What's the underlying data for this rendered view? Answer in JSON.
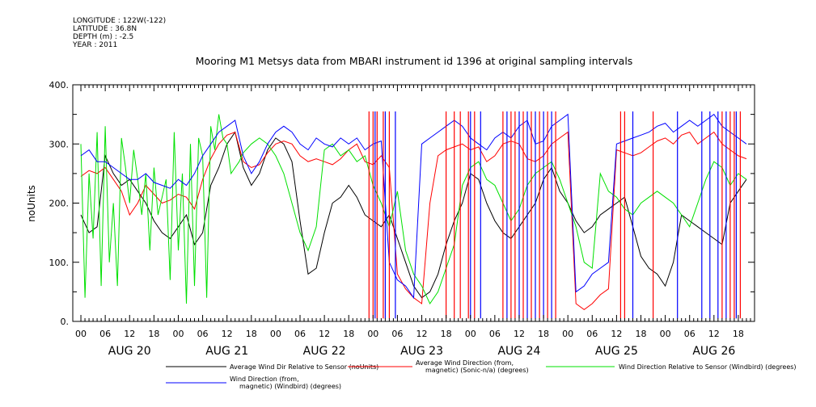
{
  "meta": {
    "longitude": "LONGITUDE : 122W(-122)",
    "latitude": "LATITUDE : 36.8N",
    "depth": "DEPTH (m) : -2.5",
    "year": "YEAR : 2011"
  },
  "chart_data": {
    "type": "line",
    "title": "Mooring M1 Metsys data from MBARI instrument id 1396 at original sampling intervals",
    "ylabel": "noUnits",
    "ylim": [
      0,
      400
    ],
    "yticks": [
      "0.",
      "100.",
      "200.",
      "300.",
      "400."
    ],
    "xlim_hours": [
      -2,
      166
    ],
    "hour_ticks": [
      "00",
      "06",
      "12",
      "18",
      "00",
      "06",
      "12",
      "18",
      "00",
      "06",
      "12",
      "18",
      "00",
      "06",
      "12",
      "18",
      "00",
      "06",
      "12",
      "18",
      "00",
      "06",
      "12",
      "18",
      "00",
      "06",
      "12",
      "18"
    ],
    "day_labels": [
      "AUG 20",
      "AUG 21",
      "AUG 22",
      "AUG 23",
      "AUG 24",
      "AUG 25",
      "AUG 26"
    ],
    "series": [
      {
        "name": "Average Wind Dir Relative to Sensor (noUnits)",
        "color": "#000000",
        "t": [
          0,
          2,
          4,
          6,
          8,
          10,
          12,
          14,
          16,
          18,
          20,
          22,
          24,
          26,
          28,
          30,
          32,
          34,
          36,
          38,
          40,
          42,
          44,
          46,
          48,
          50,
          52,
          54,
          56,
          58,
          60,
          62,
          64,
          66,
          68,
          70,
          72,
          74,
          76,
          78,
          80,
          82,
          84,
          86,
          88,
          90,
          92,
          94,
          96,
          98,
          100,
          102,
          104,
          106,
          108,
          110,
          112,
          114,
          116,
          118,
          120,
          122,
          124,
          126,
          128,
          130,
          132,
          134,
          136,
          138,
          140,
          142,
          144,
          146,
          148,
          150,
          152,
          154,
          156,
          158,
          160,
          162,
          164
        ],
        "values": [
          180,
          150,
          160,
          280,
          250,
          230,
          240,
          220,
          200,
          170,
          150,
          140,
          160,
          180,
          130,
          150,
          230,
          260,
          300,
          320,
          260,
          230,
          250,
          290,
          310,
          300,
          270,
          170,
          80,
          90,
          150,
          200,
          210,
          230,
          210,
          180,
          170,
          160,
          180,
          140,
          100,
          60,
          40,
          50,
          80,
          130,
          170,
          200,
          250,
          240,
          200,
          170,
          150,
          140,
          160,
          180,
          200,
          240,
          260,
          220,
          200,
          170,
          150,
          160,
          180,
          190,
          200,
          210,
          160,
          110,
          90,
          80,
          60,
          100,
          180,
          170,
          160,
          150,
          140,
          130,
          200,
          220,
          240
        ]
      },
      {
        "name": "Average Wind Direction (from, magnetic) (Sonic-n/a) (degrees)",
        "color": "#ff0000",
        "t": [
          0,
          2,
          4,
          6,
          8,
          10,
          12,
          14,
          16,
          18,
          20,
          22,
          24,
          26,
          28,
          30,
          32,
          34,
          36,
          38,
          40,
          42,
          44,
          46,
          48,
          50,
          52,
          54,
          56,
          58,
          60,
          62,
          64,
          66,
          68,
          70,
          72,
          74,
          76,
          78,
          80,
          82,
          84,
          86,
          88,
          90,
          92,
          94,
          96,
          98,
          100,
          102,
          104,
          106,
          108,
          110,
          112,
          114,
          116,
          118,
          120,
          122,
          124,
          126,
          128,
          130,
          132,
          134,
          136,
          138,
          140,
          142,
          144,
          146,
          148,
          150,
          152,
          154,
          156,
          158,
          160,
          162,
          164
        ],
        "values": [
          245,
          255,
          250,
          260,
          240,
          220,
          180,
          200,
          230,
          215,
          200,
          205,
          215,
          210,
          190,
          240,
          275,
          300,
          315,
          320,
          270,
          260,
          265,
          285,
          300,
          305,
          300,
          280,
          270,
          275,
          270,
          265,
          275,
          290,
          300,
          270,
          265,
          280,
          260,
          80,
          55,
          40,
          30,
          200,
          280,
          290,
          295,
          300,
          290,
          295,
          270,
          280,
          300,
          305,
          300,
          275,
          270,
          280,
          300,
          310,
          320,
          30,
          20,
          30,
          45,
          55,
          290,
          285,
          280,
          285,
          295,
          305,
          310,
          300,
          315,
          320,
          300,
          310,
          320,
          300,
          290,
          280,
          275
        ]
      },
      {
        "name": "Wind Direction Relative to Sensor (Windbird) (degrees)",
        "color": "#00e000",
        "t": [
          0,
          1,
          2,
          3,
          4,
          5,
          6,
          7,
          8,
          9,
          10,
          11,
          12,
          13,
          14,
          15,
          16,
          17,
          18,
          19,
          20,
          21,
          22,
          23,
          24,
          25,
          26,
          27,
          28,
          29,
          30,
          31,
          32,
          33,
          34,
          35,
          36,
          37,
          38,
          39,
          40,
          42,
          44,
          46,
          48,
          50,
          52,
          54,
          56,
          58,
          60,
          62,
          64,
          66,
          68,
          70,
          72,
          74,
          76,
          78,
          80,
          82,
          84,
          86,
          88,
          90,
          92,
          94,
          96,
          98,
          100,
          102,
          104,
          106,
          108,
          110,
          112,
          114,
          116,
          118,
          120,
          122,
          124,
          126,
          128,
          130,
          132,
          134,
          136,
          138,
          140,
          142,
          144,
          146,
          148,
          150,
          152,
          154,
          156,
          158,
          160,
          162,
          164
        ],
        "values": [
          300,
          40,
          250,
          140,
          320,
          60,
          330,
          100,
          200,
          60,
          310,
          260,
          200,
          290,
          240,
          180,
          250,
          120,
          260,
          180,
          210,
          240,
          70,
          320,
          120,
          250,
          30,
          300,
          60,
          310,
          280,
          40,
          330,
          290,
          350,
          310,
          300,
          250,
          260,
          270,
          285,
          300,
          310,
          300,
          280,
          250,
          200,
          150,
          120,
          160,
          290,
          300,
          280,
          290,
          270,
          280,
          230,
          200,
          160,
          220,
          120,
          80,
          60,
          30,
          50,
          90,
          130,
          230,
          260,
          270,
          240,
          230,
          200,
          170,
          190,
          230,
          250,
          260,
          270,
          240,
          200,
          160,
          100,
          90,
          250,
          220,
          210,
          190,
          180,
          200,
          210,
          220,
          210,
          200,
          180,
          160,
          200,
          240,
          270,
          260,
          230,
          250,
          240
        ]
      },
      {
        "name": "Wind Direction (from, magnetic) (Windbird) (degrees)",
        "color": "#0000ff",
        "t": [
          0,
          2,
          4,
          6,
          8,
          10,
          12,
          14,
          16,
          18,
          20,
          22,
          24,
          26,
          28,
          30,
          32,
          34,
          36,
          38,
          40,
          42,
          44,
          46,
          48,
          50,
          52,
          54,
          56,
          58,
          60,
          62,
          64,
          66,
          68,
          70,
          72,
          74,
          76,
          78,
          80,
          82,
          84,
          86,
          88,
          90,
          92,
          94,
          96,
          98,
          100,
          102,
          104,
          106,
          108,
          110,
          112,
          114,
          116,
          118,
          120,
          122,
          124,
          126,
          128,
          130,
          132,
          134,
          136,
          138,
          140,
          142,
          144,
          146,
          148,
          150,
          152,
          154,
          156,
          158,
          160,
          162,
          164
        ],
        "values": [
          280,
          290,
          270,
          270,
          260,
          250,
          240,
          240,
          250,
          235,
          230,
          225,
          240,
          230,
          250,
          280,
          300,
          320,
          330,
          340,
          280,
          250,
          270,
          300,
          320,
          330,
          320,
          300,
          290,
          310,
          300,
          295,
          310,
          300,
          310,
          290,
          300,
          305,
          100,
          70,
          60,
          40,
          300,
          310,
          320,
          330,
          340,
          330,
          310,
          300,
          290,
          310,
          320,
          310,
          330,
          340,
          300,
          305,
          330,
          340,
          350,
          50,
          60,
          80,
          90,
          100,
          300,
          305,
          310,
          315,
          320,
          330,
          335,
          320,
          330,
          340,
          330,
          340,
          350,
          330,
          320,
          310,
          300
        ]
      }
    ],
    "spikes": [
      {
        "color": "#ff0000",
        "t": [
          71,
          72,
          73,
          74.5,
          76,
          90,
          92,
          93.5,
          95.5,
          97,
          104,
          106,
          107,
          109,
          111,
          113,
          115,
          117,
          133,
          134,
          141,
          158,
          160,
          161,
          162.5
        ]
      },
      {
        "color": "#0000ff",
        "t": [
          72.5,
          75,
          77.5,
          96,
          98.5,
          105,
          108,
          110,
          112,
          114,
          116,
          136,
          147,
          153,
          155,
          157,
          159,
          161.5
        ]
      }
    ]
  }
}
